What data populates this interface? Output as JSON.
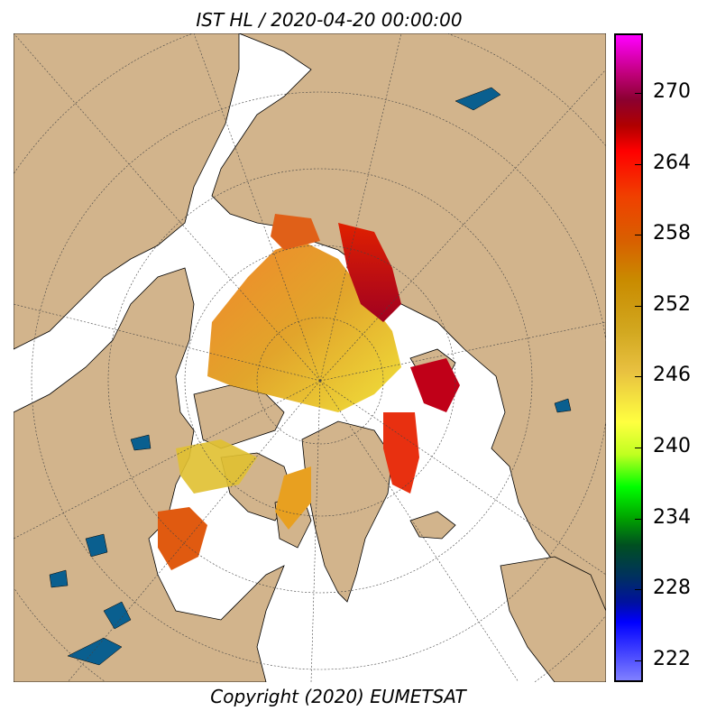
{
  "title": "IST HL / 2020-04-20 00:00:00",
  "footer": "Copyright (2020)  EUMETSAT",
  "colorbar": {
    "ticks": [
      "270",
      "264",
      "258",
      "252",
      "246",
      "240",
      "234",
      "228",
      "222"
    ],
    "unit_min": 219,
    "unit_max": 276
  },
  "colors": {
    "land": "#d2b48c",
    "water": "#ffffff",
    "lakes": "#0a5f8f",
    "coast": "#000000"
  }
}
